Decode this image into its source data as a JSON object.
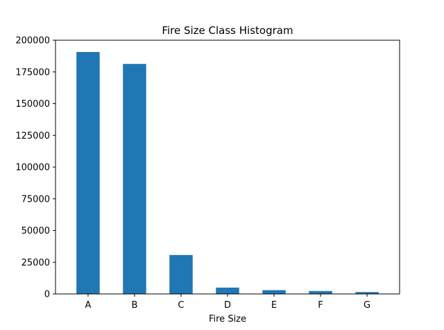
{
  "chart_data": {
    "type": "bar",
    "title": "Fire Size Class Histogram",
    "xlabel": "Fire Size",
    "ylabel": "",
    "categories": [
      "A",
      "B",
      "C",
      "D",
      "E",
      "F",
      "G"
    ],
    "values": [
      190700,
      181300,
      30700,
      5000,
      3000,
      2300,
      1500
    ],
    "ylim": [
      0,
      200000
    ],
    "yticks": [
      0,
      25000,
      50000,
      75000,
      100000,
      125000,
      150000,
      175000,
      200000
    ],
    "bar_color": "#1f77b4",
    "grid": false,
    "legend": "none"
  }
}
